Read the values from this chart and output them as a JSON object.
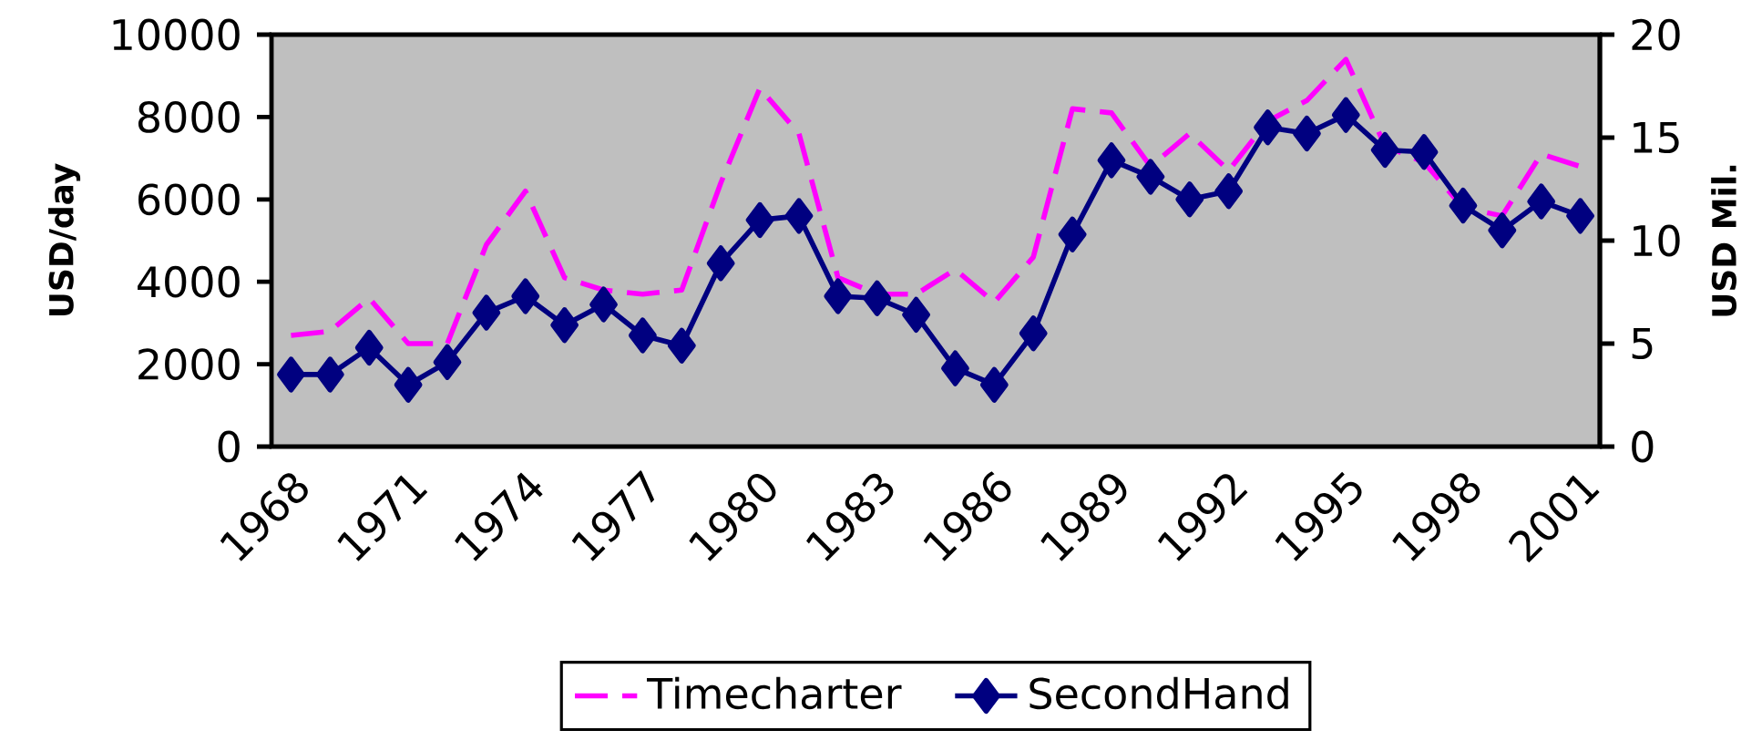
{
  "chart_data": {
    "type": "line",
    "categories": [
      "1968",
      null,
      null,
      "1971",
      null,
      null,
      "1974",
      null,
      null,
      "1977",
      null,
      null,
      "1980",
      null,
      null,
      "1983",
      null,
      null,
      "1986",
      null,
      null,
      "1989",
      null,
      null,
      "1992",
      null,
      null,
      "1995",
      null,
      null,
      "1998",
      null,
      null,
      "2001"
    ],
    "series": [
      {
        "name": "Timecharter",
        "color": "#ff00ff",
        "line_style": "dashed",
        "marker": "none",
        "values": [
          2700,
          2800,
          3600,
          2500,
          2500,
          4900,
          6200,
          4100,
          3800,
          3700,
          3800,
          6400,
          8700,
          7600,
          4100,
          3700,
          3700,
          4300,
          3500,
          4600,
          8200,
          8100,
          6800,
          7600,
          6700,
          7900,
          8400,
          9400,
          7300,
          6900,
          5800,
          5600,
          7100,
          6800
        ]
      },
      {
        "name": "SecondHand",
        "color": "#000080",
        "line_style": "solid",
        "marker": "diamond",
        "axis": "y2",
        "values": [
          3.5,
          3.5,
          4.8,
          3.0,
          4.1,
          6.5,
          7.3,
          5.9,
          6.9,
          5.4,
          4.9,
          8.9,
          11.0,
          11.2,
          7.3,
          7.2,
          6.4,
          3.8,
          3.0,
          5.5,
          10.3,
          13.9,
          13.1,
          12.0,
          12.4,
          15.5,
          15.2,
          16.1,
          14.4,
          14.3,
          11.7,
          10.5,
          11.9,
          11.2
        ]
      }
    ],
    "ylabel": "USD/day",
    "y2label": "USD Mil.",
    "ylim": [
      0,
      10000
    ],
    "yticks": [
      0,
      2000,
      4000,
      6000,
      8000,
      10000
    ],
    "y2lim": [
      0,
      20
    ],
    "y2ticks": [
      0,
      5,
      10,
      15,
      20
    ],
    "legend": "bottom"
  }
}
